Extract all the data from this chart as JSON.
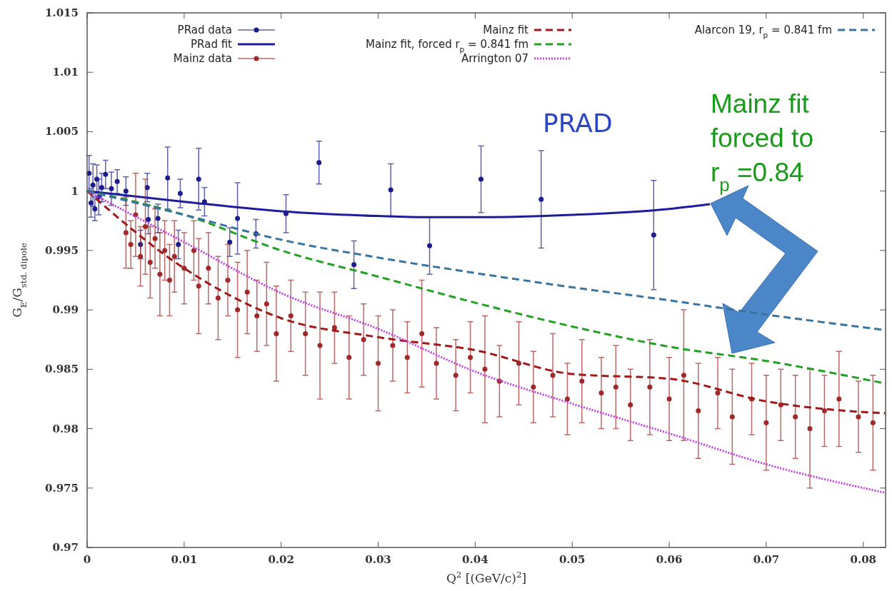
{
  "chart_data": {
    "type": "scatter",
    "xlabel": "Q$^{2}$ [(GeV/c)$^{2}$]",
    "ylabel": "G$_{E}$/G$_{std. dipole}$",
    "xlim": [
      0,
      0.0823
    ],
    "xticks": [
      0,
      0.01,
      0.02,
      0.03,
      0.04,
      0.05,
      0.06,
      0.07,
      0.08
    ],
    "ylim": [
      0.97,
      1.015
    ],
    "yticks": [
      0.97,
      0.975,
      0.98,
      0.985,
      0.99,
      0.995,
      1,
      1.005,
      1.01,
      1.015
    ],
    "grid": false,
    "legend": "top",
    "annotations": [
      "PRAD",
      "Mainz fit forced to r$_{p}$ =0.84"
    ],
    "series": [
      {
        "name": "PRad data",
        "marker": "circle",
        "color": "#1c1c8c",
        "x": [
          0.0002,
          0.0004,
          0.0006,
          0.0008,
          0.001,
          0.0012,
          0.0015,
          0.0019,
          0.0025,
          0.0031,
          0.004,
          0.0055,
          0.0062,
          0.0063,
          0.0073,
          0.0083,
          0.0094,
          0.0096,
          0.0115,
          0.0121,
          0.0147,
          0.0155,
          0.0174,
          0.0205,
          0.0239,
          0.0275,
          0.0313,
          0.0353,
          0.0406,
          0.0468,
          0.0584
        ],
        "values": [
          1.0015,
          0.999,
          1.0005,
          0.9985,
          1.001,
          0.9995,
          1.0003,
          1.0014,
          1.0002,
          1.0008,
          1.0,
          0.9955,
          1.0003,
          0.9976,
          0.9977,
          1.0011,
          0.9955,
          0.9998,
          1.001,
          0.9991,
          0.9957,
          0.9977,
          0.9964,
          0.9981,
          1.0024,
          0.9938,
          1.0001,
          0.9954,
          1.001,
          0.9993,
          0.9963
        ],
        "errors": [
          0.0015,
          0.0012,
          0.0018,
          0.001,
          0.0012,
          0.0015,
          0.0012,
          0.0012,
          0.0014,
          0.001,
          0.0012,
          0.0012,
          0.0012,
          0.0012,
          0.0012,
          0.0026,
          0.0012,
          0.0012,
          0.0026,
          0.0012,
          0.0012,
          0.003,
          0.0012,
          0.0016,
          0.0018,
          0.002,
          0.0022,
          0.0024,
          0.0028,
          0.0041,
          0.0046
        ]
      },
      {
        "name": "PRad fit",
        "type": "line",
        "color": "#1c1c9c",
        "line_style": "solid",
        "x": [
          0,
          0.01,
          0.02,
          0.03,
          0.035,
          0.04,
          0.05,
          0.06,
          0.0642
        ],
        "values": [
          1.0,
          0.9991,
          0.9983,
          0.9979,
          0.9978,
          0.9978,
          0.998,
          0.9985,
          0.9989
        ]
      },
      {
        "name": "Mainz data",
        "marker": "circle",
        "color": "#a02828",
        "x": [
          0.004,
          0.0045,
          0.005,
          0.0055,
          0.006,
          0.0065,
          0.007,
          0.0075,
          0.008,
          0.0085,
          0.009,
          0.01,
          0.011,
          0.0115,
          0.0125,
          0.0135,
          0.0145,
          0.0155,
          0.0165,
          0.0175,
          0.0185,
          0.0195,
          0.021,
          0.0225,
          0.024,
          0.0255,
          0.027,
          0.0285,
          0.03,
          0.0315,
          0.033,
          0.0345,
          0.036,
          0.038,
          0.0395,
          0.041,
          0.0425,
          0.0445,
          0.046,
          0.048,
          0.0495,
          0.051,
          0.053,
          0.0545,
          0.056,
          0.058,
          0.06,
          0.0615,
          0.063,
          0.065,
          0.0665,
          0.0685,
          0.07,
          0.0715,
          0.073,
          0.0745,
          0.076,
          0.0775,
          0.0795,
          0.081
        ],
        "values": [
          0.9965,
          0.9955,
          0.998,
          0.9945,
          0.997,
          0.994,
          0.996,
          0.993,
          0.995,
          0.9925,
          0.9945,
          0.9935,
          0.995,
          0.992,
          0.9935,
          0.991,
          0.9925,
          0.99,
          0.9915,
          0.9895,
          0.9905,
          0.988,
          0.9895,
          0.988,
          0.987,
          0.9885,
          0.986,
          0.9875,
          0.9855,
          0.987,
          0.986,
          0.988,
          0.9855,
          0.9845,
          0.986,
          0.985,
          0.984,
          0.9855,
          0.9835,
          0.9845,
          0.9825,
          0.984,
          0.983,
          0.9835,
          0.982,
          0.9835,
          0.9825,
          0.9845,
          0.9815,
          0.983,
          0.981,
          0.9825,
          0.9805,
          0.982,
          0.981,
          0.98,
          0.9815,
          0.9825,
          0.981,
          0.9805
        ],
        "errors": [
          0.003,
          0.002,
          0.0035,
          0.0025,
          0.004,
          0.003,
          0.0025,
          0.0035,
          0.0025,
          0.003,
          0.003,
          0.003,
          0.0025,
          0.004,
          0.003,
          0.0035,
          0.003,
          0.004,
          0.0035,
          0.003,
          0.0035,
          0.004,
          0.003,
          0.0035,
          0.0045,
          0.003,
          0.0035,
          0.003,
          0.004,
          0.003,
          0.003,
          0.0045,
          0.003,
          0.003,
          0.003,
          0.0045,
          0.003,
          0.0035,
          0.003,
          0.0035,
          0.003,
          0.0035,
          0.003,
          0.0035,
          0.003,
          0.004,
          0.0035,
          0.0055,
          0.004,
          0.003,
          0.004,
          0.003,
          0.004,
          0.003,
          0.0035,
          0.005,
          0.003,
          0.004,
          0.003,
          0.004
        ]
      },
      {
        "name": "Mainz fit",
        "type": "line",
        "color": "#a01818",
        "line_style": "dashed",
        "x": [
          0,
          0.01,
          0.02,
          0.03,
          0.04,
          0.05,
          0.06,
          0.07,
          0.08,
          0.0823
        ],
        "values": [
          1.0,
          0.9935,
          0.9893,
          0.9877,
          0.9866,
          0.9846,
          0.9842,
          0.9823,
          0.9814,
          0.9813
        ]
      },
      {
        "name": "Mainz fit, forced r$_{p}$ = 0.841 fm",
        "type": "line",
        "color": "#22a022",
        "line_style": "dashed",
        "x": [
          0,
          0.005,
          0.01,
          0.02,
          0.03,
          0.04,
          0.05,
          0.06,
          0.07,
          0.0823
        ],
        "values": [
          1.0,
          0.9991,
          0.998,
          0.995,
          0.9928,
          0.9906,
          0.9886,
          0.9869,
          0.9857,
          0.9838
        ]
      },
      {
        "name": "Arrington 07",
        "type": "line",
        "color": "#c040e0",
        "line_style": "dotted",
        "x": [
          0,
          0.01,
          0.0203,
          0.03,
          0.04,
          0.05,
          0.06,
          0.07,
          0.0823
        ],
        "values": [
          1.0,
          0.9957,
          0.9913,
          0.9884,
          0.9848,
          0.9821,
          0.9796,
          0.977,
          0.9746
        ]
      },
      {
        "name": "Alarcon 19, r$_{p}$ = 0.841 fm",
        "type": "line",
        "color": "#3a74a0",
        "line_style": "dashed",
        "x": [
          0,
          0.01,
          0.02,
          0.03,
          0.04,
          0.05,
          0.06,
          0.07,
          0.0823
        ],
        "values": [
          1.0,
          0.998,
          0.9959,
          0.9944,
          0.9931,
          0.9919,
          0.9908,
          0.9896,
          0.9883
        ]
      }
    ]
  }
}
